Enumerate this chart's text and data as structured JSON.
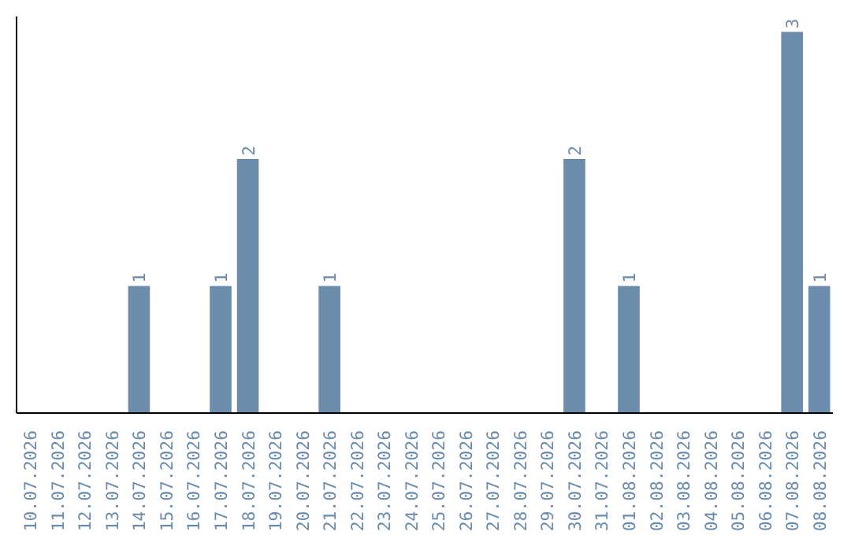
{
  "chart_data": {
    "type": "bar",
    "categories": [
      "10.07.2026",
      "11.07.2026",
      "12.07.2026",
      "13.07.2026",
      "14.07.2026",
      "15.07.2026",
      "16.07.2026",
      "17.07.2026",
      "18.07.2026",
      "19.07.2026",
      "20.07.2026",
      "21.07.2026",
      "22.07.2026",
      "23.07.2026",
      "24.07.2026",
      "25.07.2026",
      "26.07.2026",
      "27.07.2026",
      "28.07.2026",
      "29.07.2026",
      "30.07.2026",
      "31.07.2026",
      "01.08.2026",
      "02.08.2026",
      "03.08.2026",
      "04.08.2026",
      "05.08.2026",
      "06.08.2026",
      "07.08.2026",
      "08.08.2026"
    ],
    "values": [
      0,
      0,
      0,
      0,
      1,
      0,
      0,
      1,
      2,
      0,
      0,
      1,
      0,
      0,
      0,
      0,
      0,
      0,
      0,
      0,
      2,
      0,
      1,
      0,
      0,
      0,
      0,
      0,
      3,
      1
    ],
    "value_labels": [
      null,
      null,
      null,
      null,
      "1",
      null,
      null,
      "1",
      "2",
      null,
      null,
      "1",
      null,
      null,
      null,
      null,
      null,
      null,
      null,
      null,
      "2",
      null,
      "1",
      null,
      null,
      null,
      null,
      null,
      "3",
      "1"
    ],
    "color": "#6b8cab",
    "tick_labels": "x",
    "grid": false
  }
}
